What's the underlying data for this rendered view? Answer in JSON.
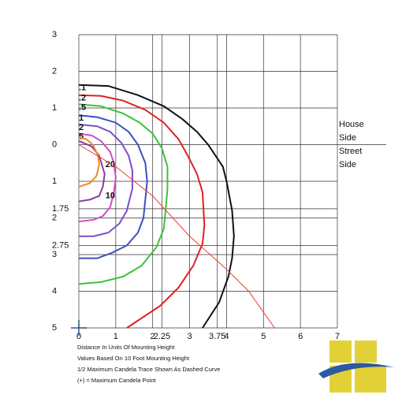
{
  "chart_data": {
    "type": "contour",
    "xlim": [
      0,
      7
    ],
    "ylim": [
      -5,
      3
    ],
    "xticks": [
      0,
      1,
      2,
      2.25,
      3,
      3.75,
      4,
      5,
      6,
      7
    ],
    "yticks": [
      3,
      2,
      1,
      0,
      {
        "value": -1,
        "label": "1"
      },
      {
        "value": -1.75,
        "label": "1.75"
      },
      {
        "value": -2,
        "label": "2"
      },
      {
        "value": -2.75,
        "label": "2.75"
      },
      {
        "value": -3,
        "label": "3"
      },
      {
        "value": -4,
        "label": "4"
      },
      {
        "value": -5,
        "label": "5"
      }
    ],
    "grid": true,
    "house_label": [
      "House",
      "Side"
    ],
    "street_label": [
      "Street",
      "Side"
    ],
    "series": [
      {
        "name": ".1",
        "color": "#111111",
        "x": [
          0,
          0.8,
          1.6,
          2.3,
          2.8,
          3.2,
          3.5,
          3.9,
          4.0,
          4.15,
          4.2,
          4.15,
          4.05,
          3.8,
          3.35
        ],
        "y": [
          1.63,
          1.6,
          1.35,
          1.05,
          0.7,
          0.35,
          0,
          -0.6,
          -1,
          -1.8,
          -2.5,
          -3.1,
          -3.6,
          -4.3,
          -5
        ]
      },
      {
        "name": ".2",
        "color": "#e02020",
        "x": [
          0,
          0.6,
          1.2,
          1.8,
          2.3,
          2.7,
          2.95,
          3.2,
          3.35,
          3.4,
          3.35,
          3.1,
          2.7,
          2.2,
          1.3
        ],
        "y": [
          1.35,
          1.33,
          1.2,
          0.95,
          0.6,
          0.15,
          -0.3,
          -0.8,
          -1.3,
          -2.2,
          -2.7,
          -3.3,
          -3.9,
          -4.4,
          -5
        ]
      },
      {
        "name": ".5",
        "color": "#3cc23c",
        "x": [
          0,
          0.6,
          1.2,
          1.65,
          2.0,
          2.25,
          2.4,
          2.4,
          2.35,
          2.3,
          2.1,
          1.7,
          1.2,
          0.6,
          0
        ],
        "y": [
          1.1,
          1.05,
          0.85,
          0.6,
          0.3,
          -0.1,
          -0.6,
          -1.2,
          -1.8,
          -2.3,
          -2.8,
          -3.3,
          -3.6,
          -3.75,
          -3.8
        ]
      },
      {
        "name": "1",
        "color": "#3a4fc0",
        "x": [
          0,
          0.5,
          1.0,
          1.35,
          1.6,
          1.8,
          1.85,
          1.8,
          1.75,
          1.6,
          1.3,
          0.9,
          0.5,
          0
        ],
        "y": [
          0.8,
          0.75,
          0.6,
          0.35,
          0,
          -0.5,
          -1,
          -1.5,
          -2,
          -2.4,
          -2.75,
          -2.95,
          -3.1,
          -3.1
        ]
      },
      {
        "name": "2",
        "color": "#7a4fc8",
        "x": [
          0,
          0.5,
          0.85,
          1.15,
          1.35,
          1.45,
          1.45,
          1.3,
          1.1,
          0.8,
          0.4,
          0
        ],
        "y": [
          0.55,
          0.5,
          0.35,
          0.05,
          -0.3,
          -0.7,
          -1.2,
          -1.8,
          -2.15,
          -2.4,
          -2.5,
          -2.5
        ]
      },
      {
        "name": "5",
        "color": "#d04ccc",
        "x": [
          0,
          0.35,
          0.6,
          0.85,
          0.95,
          1.0,
          0.95,
          0.85,
          0.65,
          0.4,
          0
        ],
        "y": [
          0.3,
          0.25,
          0.1,
          -0.2,
          -0.5,
          -0.9,
          -1.3,
          -1.7,
          -1.95,
          -2.05,
          -2.1
        ]
      },
      {
        "name": "10",
        "color": "#8a3ca0",
        "x": [
          0,
          0.35,
          0.55,
          0.7,
          0.65,
          0.55,
          0.3,
          0
        ],
        "y": [
          0.1,
          -0.05,
          -0.3,
          -0.8,
          -1.15,
          -1.4,
          -1.5,
          -1.55
        ]
      },
      {
        "name": "20",
        "color": "#f08a20",
        "x": [
          0,
          0.2,
          0.38,
          0.52,
          0.55,
          0.48,
          0.3,
          0
        ],
        "y": [
          0.2,
          0.15,
          0,
          -0.3,
          -0.55,
          -0.85,
          -1.05,
          -1.15
        ]
      }
    ],
    "trace": {
      "color": "#f03a2a",
      "x": [
        0,
        1,
        2,
        3,
        4,
        4.6,
        5.3
      ],
      "y": [
        0,
        -0.6,
        -1.4,
        -2.5,
        -3.4,
        -4,
        -5
      ]
    },
    "notes": [
      "Distance In Units Of Mounting Height",
      "Values Based On 10 Foot Mounting Height",
      "1/2 Maximum Candela Trace Shown As Dashed Curve",
      "(+) = Maximum Candela Point"
    ]
  }
}
